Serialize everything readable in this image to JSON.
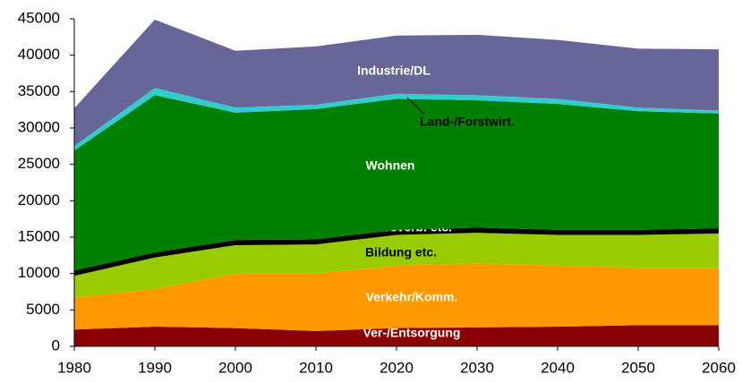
{
  "chart_data": {
    "type": "stacked_area",
    "x": [
      1980,
      1990,
      2000,
      2010,
      2020,
      2030,
      2040,
      2050,
      2060
    ],
    "xlim": [
      1980,
      2060
    ],
    "xticks": [
      1980,
      1990,
      2000,
      2010,
      2020,
      2030,
      2040,
      2050,
      2060
    ],
    "ylim": [
      0,
      45000
    ],
    "yticks": [
      0,
      5000,
      10000,
      15000,
      20000,
      25000,
      30000,
      35000,
      40000,
      45000
    ],
    "grid": false,
    "series": [
      {
        "name": "Ver-/Entsorgung",
        "color": "#8b0000",
        "values": [
          2300,
          2700,
          2500,
          2100,
          2500,
          2600,
          2700,
          2900,
          2900
        ]
      },
      {
        "name": "Verkehr/Komm.",
        "color": "#ff9900",
        "values": [
          4400,
          5200,
          7500,
          7900,
          8600,
          8800,
          8400,
          7900,
          7900
        ]
      },
      {
        "name": "Bildung etc.",
        "color": "#99cc00",
        "values": [
          3000,
          4300,
          3900,
          4000,
          4200,
          4200,
          4200,
          4500,
          4700
        ]
      },
      {
        "name": "Flussverb. etc.",
        "color": "#000000",
        "values": [
          700,
          700,
          700,
          700,
          700,
          700,
          700,
          700,
          700
        ]
      },
      {
        "name": "Wohnen",
        "color": "#008000",
        "values": [
          16500,
          21600,
          17500,
          17900,
          18000,
          17500,
          17300,
          16300,
          15800
        ]
      },
      {
        "name": "Land-/Forstwirt.",
        "color": "#33cccc",
        "values": [
          600,
          1000,
          700,
          600,
          700,
          700,
          700,
          500,
          400
        ]
      },
      {
        "name": "Industrie/DL",
        "color": "#666699",
        "values": [
          5200,
          9400,
          7800,
          8000,
          8000,
          8300,
          8100,
          8100,
          8400
        ]
      }
    ]
  }
}
